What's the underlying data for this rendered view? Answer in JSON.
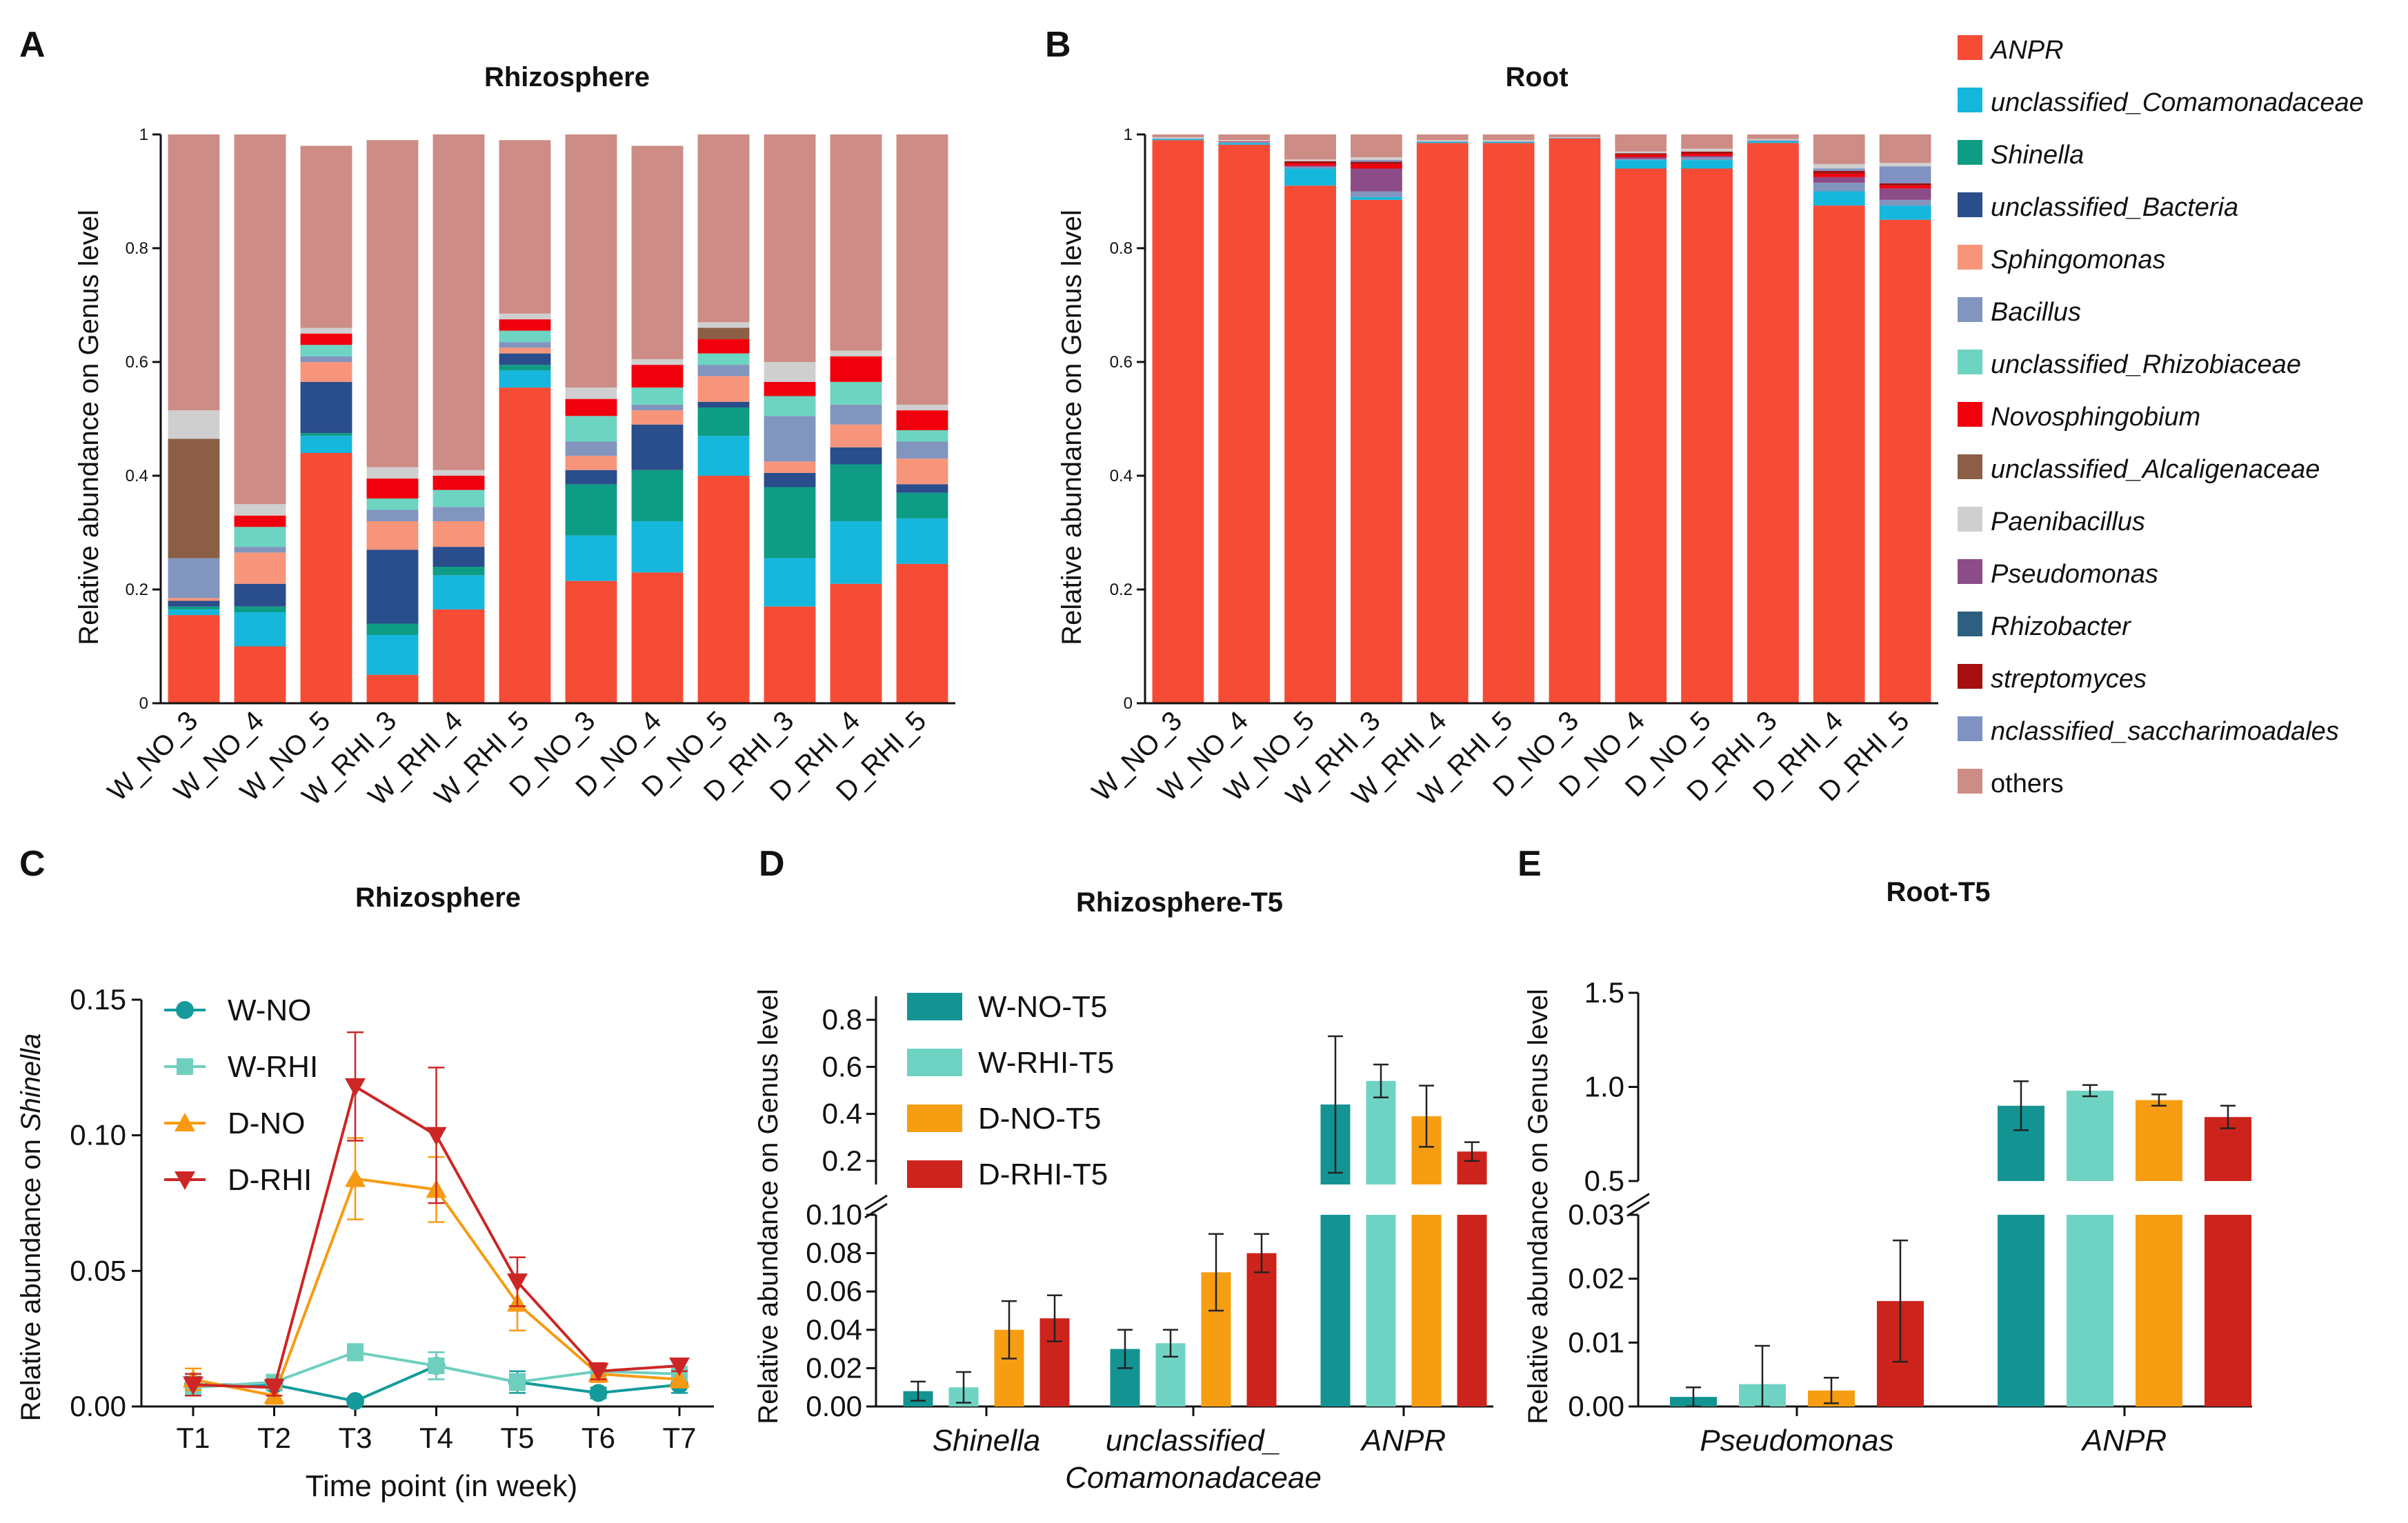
{
  "panel_labels": [
    "A",
    "B",
    "C",
    "D",
    "E"
  ],
  "legend_items": [
    {
      "name": "ANPR",
      "color": "#f64b35",
      "italic": true
    },
    {
      "name": "unclassified_Comamonadaceae",
      "color": "#16b7dd",
      "italic": true
    },
    {
      "name": "Shinella",
      "color": "#0f9c84",
      "italic": true
    },
    {
      "name": "unclassified_Bacteria",
      "color": "#2a4d8c",
      "italic": true
    },
    {
      "name": "Sphingomonas",
      "color": "#f7957a",
      "italic": true
    },
    {
      "name": "Bacillus",
      "color": "#8195bf",
      "italic": true
    },
    {
      "name": "unclassified_Rhizobiaceae",
      "color": "#6dd4c1",
      "italic": true
    },
    {
      "name": "Novosphingobium",
      "color": "#f0000c",
      "italic": true
    },
    {
      "name": "unclassified_Alcaligenaceae",
      "color": "#8c5e45",
      "italic": true
    },
    {
      "name": "Paenibacillus",
      "color": "#cfcfcf",
      "italic": true
    },
    {
      "name": "Pseudomonas",
      "color": "#8c4c87",
      "italic": true
    },
    {
      "name": "Rhizobacter",
      "color": "#2f5f80",
      "italic": true
    },
    {
      "name": "streptomyces",
      "color": "#a50f0f",
      "italic": true
    },
    {
      "name": "nclassified_saccharimoadales",
      "color": "#7f92c1",
      "italic": true
    },
    {
      "name": "others",
      "color": "#cd8c85",
      "italic": false
    }
  ],
  "chart_data": [
    {
      "id": "A",
      "type": "bar",
      "stacked": true,
      "title": "Rhizosphere",
      "ylabel": "Relative abundance on Genus level",
      "ylim": [
        0,
        1
      ],
      "yticks": [
        "0",
        "0.2",
        "0.4",
        "0.6",
        "0.8",
        "1"
      ],
      "categories": [
        "W_NO_3",
        "W_NO_4",
        "W_NO_5",
        "W_RHI_3",
        "W_RHI_4",
        "W_RHI_5",
        "D_NO_3",
        "D_NO_4",
        "D_NO_5",
        "D_RHI_3",
        "D_RHI_4",
        "D_RHI_5"
      ],
      "series": [
        {
          "name": "ANPR",
          "values": [
            0.155,
            0.1,
            0.44,
            0.05,
            0.165,
            0.555,
            0.215,
            0.23,
            0.4,
            0.17,
            0.21,
            0.245
          ]
        },
        {
          "name": "unclassified_Comamonadaceae",
          "values": [
            0.01,
            0.06,
            0.03,
            0.07,
            0.06,
            0.03,
            0.08,
            0.09,
            0.07,
            0.085,
            0.11,
            0.08
          ]
        },
        {
          "name": "Shinella",
          "values": [
            0.005,
            0.01,
            0.005,
            0.02,
            0.015,
            0.01,
            0.09,
            0.09,
            0.05,
            0.125,
            0.1,
            0.045
          ]
        },
        {
          "name": "unclassified_Bacteria",
          "values": [
            0.01,
            0.04,
            0.09,
            0.13,
            0.035,
            0.02,
            0.025,
            0.08,
            0.01,
            0.025,
            0.03,
            0.015
          ]
        },
        {
          "name": "Sphingomonas",
          "values": [
            0.005,
            0.055,
            0.035,
            0.05,
            0.045,
            0.01,
            0.025,
            0.025,
            0.045,
            0.02,
            0.04,
            0.045
          ]
        },
        {
          "name": "Bacillus",
          "values": [
            0.07,
            0.01,
            0.01,
            0.02,
            0.025,
            0.01,
            0.025,
            0.01,
            0.02,
            0.08,
            0.035,
            0.03
          ]
        },
        {
          "name": "unclassified_Rhizobiaceae",
          "values": [
            0,
            0.035,
            0.02,
            0.02,
            0.03,
            0.02,
            0.045,
            0.03,
            0.02,
            0.035,
            0.04,
            0.02
          ]
        },
        {
          "name": "Novosphingobium",
          "values": [
            0,
            0.02,
            0.02,
            0.035,
            0.025,
            0.02,
            0.03,
            0.04,
            0.025,
            0.025,
            0.045,
            0.035
          ]
        },
        {
          "name": "unclassified_Alcaligenaceae",
          "values": [
            0.21,
            0,
            0,
            0,
            0,
            0,
            0,
            0,
            0.02,
            0,
            0,
            0
          ]
        },
        {
          "name": "Paenibacillus",
          "values": [
            0.05,
            0.02,
            0.01,
            0.02,
            0.01,
            0.01,
            0.02,
            0.01,
            0.01,
            0.035,
            0.01,
            0.01
          ]
        },
        {
          "name": "others",
          "values": [
            0.485,
            0.65,
            0.32,
            0.575,
            0.59,
            0.305,
            0.445,
            0.375,
            0.33,
            0.4,
            0.38,
            0.475
          ]
        }
      ]
    },
    {
      "id": "B",
      "type": "bar",
      "stacked": true,
      "title": "Root",
      "ylabel": "Relative abundance on Genus level",
      "ylim": [
        0,
        1
      ],
      "yticks": [
        "0",
        "0.2",
        "0.4",
        "0.6",
        "0.8",
        "1"
      ],
      "categories": [
        "W_NO_3",
        "W_NO_4",
        "W_NO_5",
        "W_RHI_3",
        "W_RHI_4",
        "W_RHI_5",
        "D_NO_3",
        "D_NO_4",
        "D_NO_5",
        "D_RHI_3",
        "D_RHI_4",
        "D_RHI_5"
      ],
      "series": [
        {
          "name": "ANPR",
          "values": [
            0.99,
            0.982,
            0.91,
            0.885,
            0.985,
            0.985,
            0.993,
            0.94,
            0.94,
            0.985,
            0.875,
            0.85
          ]
        },
        {
          "name": "unclassified_Comamonadaceae",
          "values": [
            0.002,
            0.003,
            0.03,
            0.005,
            0.002,
            0.002,
            0.001,
            0.015,
            0.015,
            0.003,
            0.025,
            0.025
          ]
        },
        {
          "name": "Bacillus",
          "values": [
            0.001,
            0.002,
            0.003,
            0.01,
            0.001,
            0.001,
            0,
            0.002,
            0.005,
            0.002,
            0.015,
            0.01
          ]
        },
        {
          "name": "Pseudomonas",
          "values": [
            0,
            0,
            0.002,
            0.04,
            0,
            0,
            0,
            0.003,
            0.002,
            0,
            0.01,
            0.02
          ]
        },
        {
          "name": "Novosphingobium",
          "values": [
            0,
            0.001,
            0.004,
            0.008,
            0,
            0,
            0,
            0.004,
            0.004,
            0,
            0.006,
            0.005
          ]
        },
        {
          "name": "streptomyces",
          "values": [
            0,
            0,
            0.004,
            0.004,
            0,
            0,
            0,
            0.003,
            0.004,
            0,
            0.005,
            0.004
          ]
        },
        {
          "name": "nclassified_saccharimoadales",
          "values": [
            0,
            0,
            0,
            0.003,
            0,
            0,
            0,
            0,
            0,
            0,
            0.004,
            0.03
          ]
        },
        {
          "name": "Paenibacillus",
          "values": [
            0.002,
            0.002,
            0.003,
            0.005,
            0.002,
            0.002,
            0.001,
            0.003,
            0.005,
            0.002,
            0.008,
            0.006
          ]
        },
        {
          "name": "others",
          "values": [
            0.005,
            0.01,
            0.044,
            0.04,
            0.01,
            0.01,
            0.005,
            0.03,
            0.025,
            0.008,
            0.052,
            0.05
          ]
        }
      ]
    },
    {
      "id": "C",
      "type": "line",
      "title": "Rhizosphere",
      "xlabel": "Time point (in week)",
      "ylabel_prefix": "Relative abundance on ",
      "ylabel_italic": "Shinella",
      "x": [
        "T1",
        "T2",
        "T3",
        "T4",
        "T5",
        "T6",
        "T7"
      ],
      "ylim": [
        0,
        0.15
      ],
      "yticks": [
        "0.00",
        "0.05",
        "0.10",
        "0.15"
      ],
      "series": [
        {
          "name": "W-NO",
          "color": "#149a9a",
          "marker": "circle",
          "values": [
            0.008,
            0.008,
            0.002,
            0.015,
            0.009,
            0.005,
            0.008
          ],
          "errors": [
            0.003,
            0.002,
            0.001,
            0.005,
            0.004,
            0.002,
            0.003
          ]
        },
        {
          "name": "W-RHI",
          "color": "#6fcfbf",
          "marker": "square",
          "values": [
            0.007,
            0.009,
            0.02,
            0.015,
            0.009,
            0.013,
            0.012
          ],
          "errors": [
            0.003,
            0.002,
            0.003,
            0.005,
            0.003,
            0.002,
            0.002
          ]
        },
        {
          "name": "D-NO",
          "color": "#f79a12",
          "marker": "triangle-up",
          "values": [
            0.01,
            0.004,
            0.084,
            0.08,
            0.038,
            0.012,
            0.01
          ],
          "errors": [
            0.004,
            0.003,
            0.015,
            0.012,
            0.01,
            0.003,
            0.003
          ]
        },
        {
          "name": "D-RHI",
          "color": "#cc2626",
          "marker": "triangle-down",
          "values": [
            0.008,
            0.007,
            0.118,
            0.1,
            0.046,
            0.013,
            0.015
          ],
          "errors": [
            0.004,
            0.003,
            0.02,
            0.025,
            0.009,
            0.003,
            0.002
          ]
        }
      ]
    },
    {
      "id": "D",
      "type": "bar",
      "title": "Rhizosphere-T5",
      "ylabel": "Relative abundance on Genus level",
      "categories": [
        "Shinella",
        "unclassified_",
        "ANPR"
      ],
      "category_line2": [
        "",
        "Comamonadaceae",
        ""
      ],
      "broken_axis": {
        "lower": [
          0,
          0.1
        ],
        "upper": [
          0.1,
          0.9
        ]
      },
      "yticks_lower": [
        "0.00",
        "0.02",
        "0.04",
        "0.06",
        "0.08",
        "0.10"
      ],
      "yticks_upper": [
        "0.2",
        "0.4",
        "0.6",
        "0.8"
      ],
      "series": [
        {
          "name": "W-NO-T5",
          "color": "#149393",
          "values": [
            0.008,
            0.03,
            0.44
          ],
          "errors": [
            0.005,
            0.01,
            0.29
          ]
        },
        {
          "name": "W-RHI-T5",
          "color": "#6fd3c3",
          "values": [
            0.01,
            0.033,
            0.54
          ],
          "errors": [
            0.008,
            0.007,
            0.07
          ]
        },
        {
          "name": "D-NO-T5",
          "color": "#f79d12",
          "values": [
            0.04,
            0.07,
            0.39
          ],
          "errors": [
            0.015,
            0.02,
            0.13
          ]
        },
        {
          "name": "D-RHI-T5",
          "color": "#cc241c",
          "values": [
            0.046,
            0.08,
            0.24
          ],
          "errors": [
            0.012,
            0.01,
            0.04
          ]
        }
      ]
    },
    {
      "id": "E",
      "type": "bar",
      "title": "Root-T5",
      "ylabel": "Relative abundance on Genus level",
      "categories": [
        "Pseudomonas",
        "ANPR"
      ],
      "broken_axis": {
        "lower": [
          0,
          0.03
        ],
        "upper": [
          0.5,
          1.5
        ]
      },
      "yticks_lower": [
        "0.00",
        "0.01",
        "0.02",
        "0.03"
      ],
      "yticks_upper": [
        "0.5",
        "1.0",
        "1.5"
      ],
      "series": [
        {
          "name": "W-NO-T5",
          "color": "#149393",
          "values": [
            0.0015,
            0.9
          ],
          "errors": [
            0.0015,
            0.13
          ]
        },
        {
          "name": "W-RHI-T5",
          "color": "#6fd3c3",
          "values": [
            0.0035,
            0.98
          ],
          "errors": [
            0.006,
            0.03
          ]
        },
        {
          "name": "D-NO-T5",
          "color": "#f79d12",
          "values": [
            0.0025,
            0.93
          ],
          "errors": [
            0.002,
            0.03
          ]
        },
        {
          "name": "D-RHI-T5",
          "color": "#cc241c",
          "values": [
            0.0165,
            0.84
          ],
          "errors": [
            0.0095,
            0.06
          ]
        }
      ]
    }
  ]
}
